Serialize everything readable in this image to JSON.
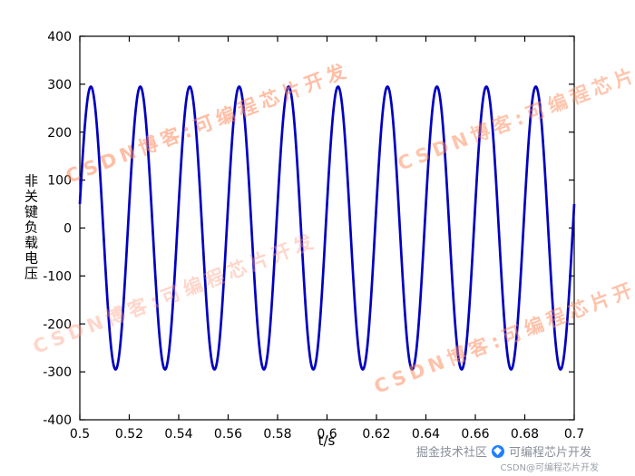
{
  "watermark": {
    "text": "CSDN博客:可编程芯片开发",
    "color": "#FF8A5C"
  },
  "footer": {
    "juejin_label": "掘金技术社区",
    "author": "可编程芯片开发",
    "csdn_credit": "CSDN@可编程芯片开发"
  },
  "chart_data": {
    "type": "line",
    "title": "",
    "xlabel": "t/s",
    "ylabel": "非关键负载电压",
    "xlim": [
      0.5,
      0.7
    ],
    "ylim": [
      -400,
      400
    ],
    "x_tick_values": [
      0.5,
      0.52,
      0.54,
      0.56,
      0.58,
      0.6,
      0.62,
      0.64,
      0.66,
      0.68,
      0.7
    ],
    "x_tick_labels": [
      "0.5",
      "0.52",
      "0.54",
      "0.56",
      "0.58",
      "0.6",
      "0.62",
      "0.64",
      "0.66",
      "0.68",
      "0.7"
    ],
    "y_tick_values": [
      -400,
      -300,
      -200,
      -100,
      0,
      100,
      200,
      300,
      400
    ],
    "y_tick_labels": [
      "-400",
      "-300",
      "-200",
      "-100",
      "0",
      "100",
      "200",
      "300",
      "400"
    ],
    "grid": false,
    "box": true,
    "axis_color": "#000000",
    "series": [
      {
        "name": "非关键负载电压",
        "waveform": "sine",
        "amplitude": 295,
        "frequency_hz": 50,
        "phase_rad": 0.17,
        "offset": 0,
        "x_start": 0.5,
        "x_end": 0.7,
        "color": "#0000C0",
        "line_width": 2.7
      }
    ]
  }
}
